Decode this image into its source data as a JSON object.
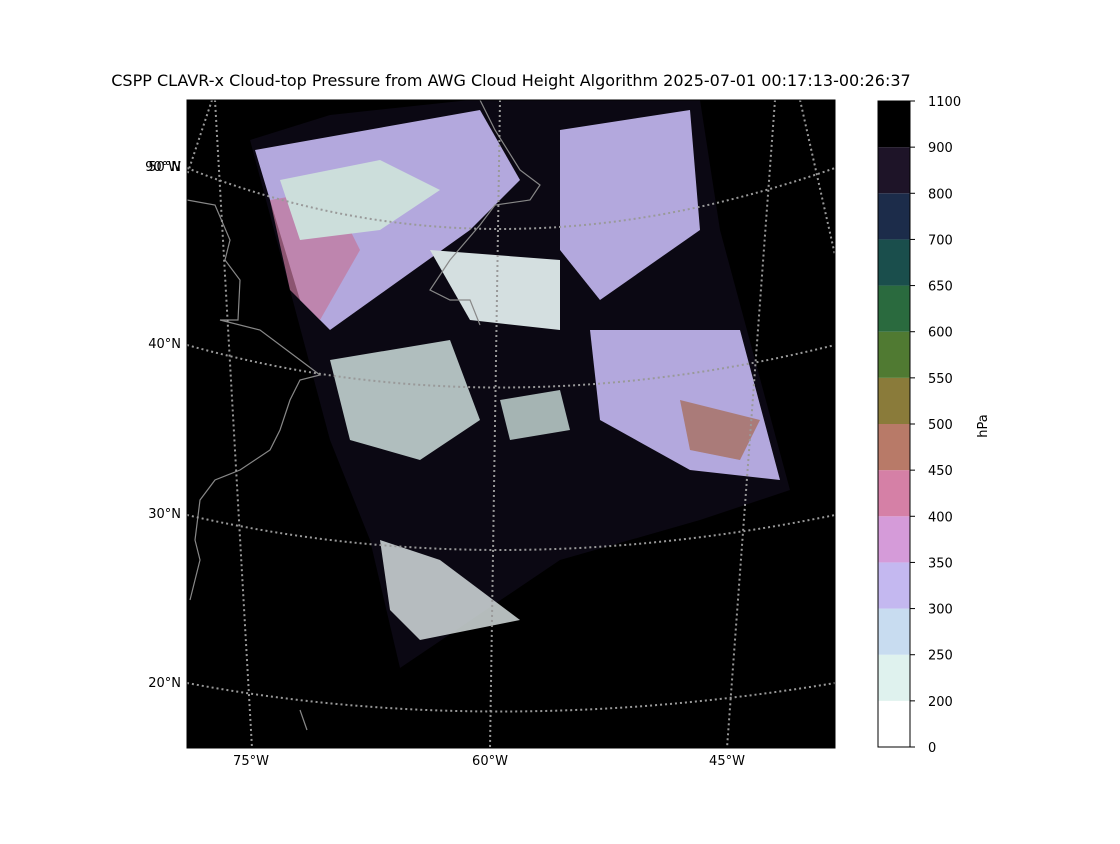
{
  "title": "CSPP CLAVR-x Cloud-top Pressure from AWG Cloud Height Algorithm 2025-07-01 00:17:13-00:26:37",
  "map": {
    "lat_labels": [
      "50°N",
      "40°N",
      "30°N",
      "20°N"
    ],
    "corner_label": "90°W",
    "lon_labels": [
      "75°W",
      "60°W",
      "45°W"
    ]
  },
  "colorbar": {
    "label": "hPa",
    "ticks": [
      0,
      200,
      250,
      300,
      350,
      400,
      450,
      500,
      550,
      600,
      650,
      700,
      800,
      900,
      1100
    ],
    "colors": [
      "#ffffff",
      "#dff2ee",
      "#c8dcf0",
      "#c4b8f0",
      "#d59bd9",
      "#d580a6",
      "#b87a68",
      "#8a7b3a",
      "#507a32",
      "#2a6a3e",
      "#1a4e4c",
      "#1c2c4a",
      "#1e1428",
      "#000000"
    ]
  }
}
